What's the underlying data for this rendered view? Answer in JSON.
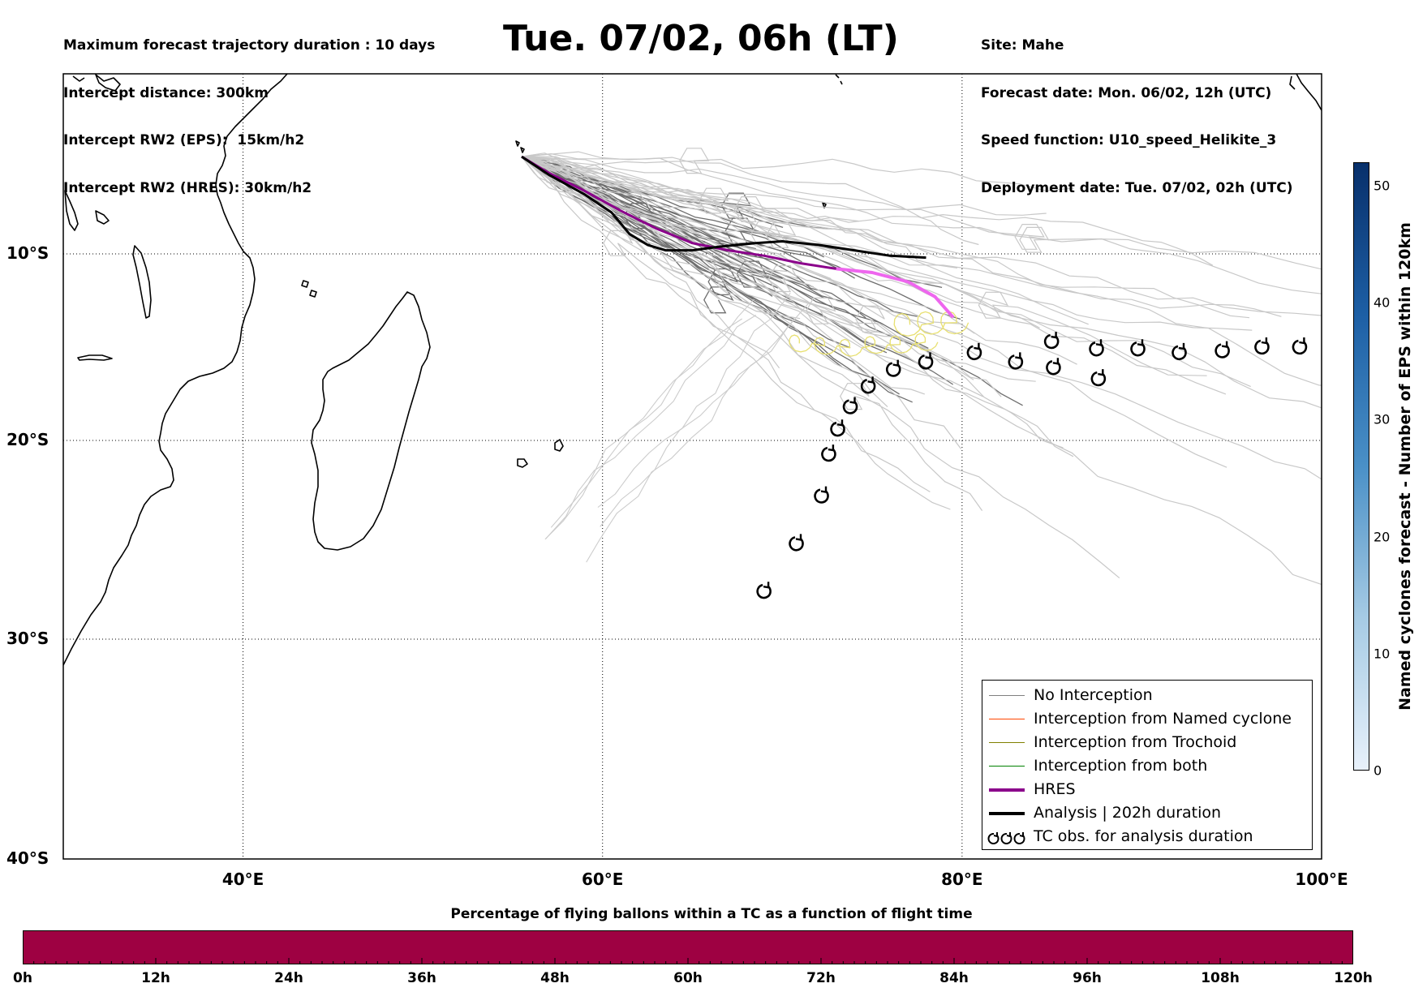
{
  "header": {
    "left_lines": [
      "Maximum forecast trajectory duration : 10 days",
      "Intercept distance: 300km",
      "Intercept RW2 (EPS):  15km/h2",
      "Intercept RW2 (HRES): 30km/h2"
    ],
    "title": "Tue. 07/02, 06h (LT)",
    "right_lines": [
      "Site: Mahe",
      "Forecast date: Mon. 06/02, 12h (UTC)",
      "Speed function: U10_speed_Helikite_3",
      "Deployment date: Tue. 07/02, 02h (UTC)"
    ]
  },
  "map": {
    "lon_range": [
      30,
      100
    ],
    "lat_range": [
      -40,
      0
    ],
    "lon_ticks": [
      {
        "value": 40,
        "label": "40°E"
      },
      {
        "value": 60,
        "label": "60°E"
      },
      {
        "value": 80,
        "label": "80°E"
      },
      {
        "value": 100,
        "label": "100°E"
      }
    ],
    "lat_ticks": [
      {
        "value": -10,
        "label": "10°S"
      },
      {
        "value": -20,
        "label": "20°S"
      },
      {
        "value": -30,
        "label": "30°S"
      },
      {
        "value": -40,
        "label": "40°S"
      }
    ],
    "grid": "dotted",
    "deployment_site": {
      "lon": 55.5,
      "lat": -4.6
    },
    "analysis_track": [
      [
        55.5,
        -4.6
      ],
      [
        57,
        -5.6
      ],
      [
        59,
        -6.7
      ],
      [
        60.5,
        -7.7
      ],
      [
        61.5,
        -8.9
      ],
      [
        62.5,
        -9.5
      ],
      [
        63.5,
        -9.8
      ],
      [
        65,
        -9.8
      ],
      [
        66.5,
        -9.6
      ],
      [
        68.5,
        -9.4
      ],
      [
        70,
        -9.3
      ],
      [
        72,
        -9.5
      ],
      [
        74,
        -9.8
      ],
      [
        76,
        -10.1
      ],
      [
        78,
        -10.2
      ]
    ],
    "hres_track": [
      [
        55.5,
        -4.6
      ],
      [
        57,
        -5.5
      ],
      [
        59,
        -6.5
      ],
      [
        61,
        -7.6
      ],
      [
        63,
        -8.6
      ],
      [
        65,
        -9.4
      ],
      [
        67,
        -9.8
      ],
      [
        69,
        -10.1
      ],
      [
        71,
        -10.5
      ],
      [
        73,
        -10.8
      ],
      [
        75,
        -11.0
      ],
      [
        77,
        -11.5
      ],
      [
        78.5,
        -12.3
      ],
      [
        79.5,
        -13.4
      ]
    ],
    "tc_observations": [
      [
        69.0,
        -27.6
      ],
      [
        70.8,
        -25.2
      ],
      [
        72.2,
        -22.8
      ],
      [
        72.6,
        -20.7
      ],
      [
        73.1,
        -19.4
      ],
      [
        73.8,
        -18.2
      ],
      [
        74.8,
        -17.1
      ],
      [
        76.2,
        -16.2
      ],
      [
        78.0,
        -15.8
      ],
      [
        80.7,
        -15.3
      ],
      [
        83.0,
        -15.8
      ],
      [
        85.0,
        -14.7
      ],
      [
        85.1,
        -16.1
      ],
      [
        87.5,
        -15.1
      ],
      [
        87.6,
        -16.7
      ],
      [
        89.8,
        -15.1
      ],
      [
        92.1,
        -15.3
      ],
      [
        94.5,
        -15.2
      ],
      [
        96.7,
        -15.0
      ],
      [
        98.8,
        -15.0
      ]
    ]
  },
  "legend": {
    "items": [
      {
        "label": "No Interception",
        "color": "#7f7f7f"
      },
      {
        "label": "Interception from Named cyclone",
        "color": "#ff4500"
      },
      {
        "label": "Interception from Trochoid",
        "color": "#808000"
      },
      {
        "label": "Interception from both",
        "color": "#008000"
      },
      {
        "label": "HRES",
        "color": "#8b008b"
      },
      {
        "label": "Analysis | 202h duration",
        "color": "#000000"
      },
      {
        "label": "TC obs. for analysis duration",
        "color": "#000000",
        "icon": "cyclone-icon"
      }
    ]
  },
  "colorbar": {
    "label": "Named cyclones forecast - Number of EPS within 120km",
    "min": 0,
    "max": 52,
    "ticks": [
      "0",
      "10",
      "20",
      "30",
      "40",
      "50"
    ]
  },
  "time_bar": {
    "title": "Percentage of flying ballons within a TC as a function of flight time",
    "color": "#9e0142",
    "ticks": [
      "0h",
      "12h",
      "24h",
      "36h",
      "48h",
      "60h",
      "72h",
      "84h",
      "96h",
      "108h",
      "120h"
    ]
  }
}
